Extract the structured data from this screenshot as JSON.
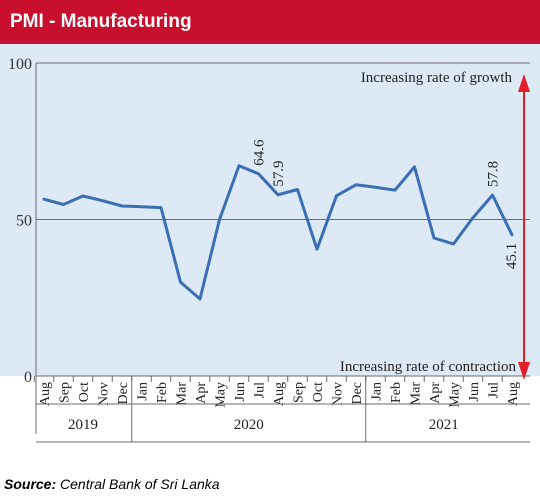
{
  "header": {
    "title": "PMI - Manufacturing"
  },
  "source": {
    "label": "Source:",
    "text": "Central Bank of Sri Lanka"
  },
  "colors": {
    "header_bg": "#c8102e",
    "line": "#3a6fb5",
    "arrow": "#e31e24",
    "plot_bg": "#dde9f4"
  },
  "chart_data": {
    "type": "line",
    "title": "",
    "xlabel": "",
    "ylabel": "",
    "ylim": [
      0,
      100
    ],
    "yticks": [
      "0",
      "50",
      "100"
    ],
    "reference_line": 50,
    "grid": false,
    "categories": [
      "Aug",
      "Sep",
      "Oct",
      "Nov",
      "Dec",
      "Jan",
      "Feb",
      "Mar",
      "Apr",
      "May",
      "Jun",
      "Jul",
      "Aug",
      "Sep",
      "Oct",
      "Nov",
      "Dec",
      "Jan",
      "Feb",
      "Mar",
      "Apr",
      "May",
      "Jun",
      "Jul",
      "Aug"
    ],
    "years": [
      {
        "label": "2019",
        "start": 0,
        "end": 4
      },
      {
        "label": "2020",
        "start": 5,
        "end": 16
      },
      {
        "label": "2021",
        "start": 17,
        "end": 24
      }
    ],
    "series": [
      {
        "values": [
          56.5,
          54.8,
          57.5,
          56,
          54.3,
          54.1,
          53.8,
          30,
          24.6,
          50,
          67.2,
          64.6,
          57.9,
          59.6,
          40.5,
          57.6,
          61.1,
          60.3,
          59.4,
          66.8,
          44.1,
          42.2,
          50.6,
          57.8,
          45.1
        ]
      }
    ],
    "data_labels": [
      {
        "index": 11,
        "text": "64.6"
      },
      {
        "index": 12,
        "text": "57.9"
      },
      {
        "index": 23,
        "text": "57.8"
      },
      {
        "index": 24,
        "text": "45.1"
      }
    ],
    "annotations": {
      "top": "Increasing rate of growth",
      "bottom": "Increasing rate of contraction"
    }
  }
}
